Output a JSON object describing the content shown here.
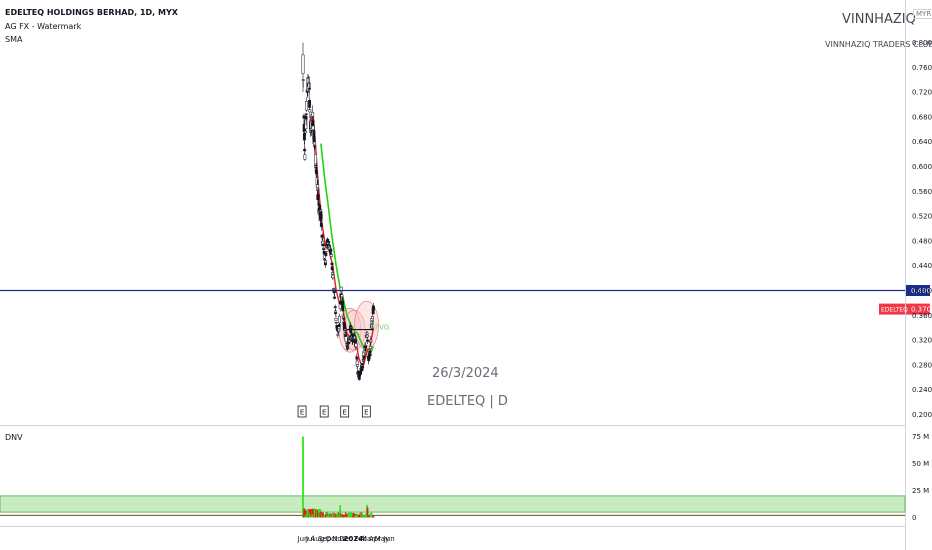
{
  "header": {
    "symbol_title": "EDELTEQ HOLDINGS BERHAD, 1D, MYX",
    "indicator_1": "AG FX - Watermark",
    "indicator_2": "SMA",
    "currency": "MYR"
  },
  "watermark": {
    "brand": "VINNHAZIQ",
    "club": "VINNHAZIQ TRADERS CLUB",
    "date": "26/3/2024",
    "ticker": "EDELTEQ | D"
  },
  "colors": {
    "up": "#ffffff",
    "down": "#131722",
    "sma_fast": "#e8191c",
    "sma_slow": "#22d40f",
    "hline": "#1a2d8f",
    "ticker_badge": "#f23645",
    "volume_up": "#2fe61c",
    "volume_down": "#e8191c"
  },
  "chart_data": {
    "type": "candlestick",
    "x_ticks": [
      "Jun",
      "Jul",
      "Aug",
      "Sep",
      "Oct",
      "Nov",
      "Dec",
      "2024",
      "Feb",
      "Mar",
      "Apr",
      "May",
      "Jun"
    ],
    "y_ticks": [
      "0.800",
      "0.760",
      "0.720",
      "0.680",
      "0.640",
      "0.600",
      "0.560",
      "0.520",
      "0.480",
      "0.440",
      "0.400",
      "0.360",
      "0.320",
      "0.280",
      "0.240",
      "0.200"
    ],
    "ylim": [
      0.19,
      0.82
    ],
    "price_path": [
      [
        "2023-06-01",
        0.76
      ],
      [
        "2023-06-05",
        0.68
      ],
      [
        "2023-06-09",
        0.62
      ],
      [
        "2023-06-14",
        0.68
      ],
      [
        "2023-06-20",
        0.73
      ],
      [
        "2023-06-26",
        0.74
      ],
      [
        "2023-07-03",
        0.66
      ],
      [
        "2023-07-12",
        0.68
      ],
      [
        "2023-07-19",
        0.64
      ],
      [
        "2023-07-26",
        0.6
      ],
      [
        "2023-08-02",
        0.56
      ],
      [
        "2023-08-09",
        0.53
      ],
      [
        "2023-08-16",
        0.52
      ],
      [
        "2023-08-23",
        0.48
      ],
      [
        "2023-08-30",
        0.46
      ],
      [
        "2023-09-04",
        0.44
      ],
      [
        "2023-09-08",
        0.47
      ],
      [
        "2023-09-15",
        0.48
      ],
      [
        "2023-09-22",
        0.47
      ],
      [
        "2023-09-29",
        0.46
      ],
      [
        "2023-10-06",
        0.42
      ],
      [
        "2023-10-13",
        0.39
      ],
      [
        "2023-10-20",
        0.35
      ],
      [
        "2023-10-27",
        0.33
      ],
      [
        "2023-11-01",
        0.34
      ],
      [
        "2023-11-07",
        0.38
      ],
      [
        "2023-11-10",
        0.4
      ],
      [
        "2023-11-14",
        0.39
      ],
      [
        "2023-11-21",
        0.35
      ],
      [
        "2023-11-28",
        0.33
      ],
      [
        "2023-12-06",
        0.31
      ],
      [
        "2023-12-14",
        0.32
      ],
      [
        "2023-12-20",
        0.34
      ],
      [
        "2023-12-28",
        0.32
      ],
      [
        "2024-01-05",
        0.33
      ],
      [
        "2024-01-12",
        0.31
      ],
      [
        "2024-01-19",
        0.27
      ],
      [
        "2024-01-26",
        0.26
      ],
      [
        "2024-02-02",
        0.27
      ],
      [
        "2024-02-09",
        0.28
      ],
      [
        "2024-02-16",
        0.3
      ],
      [
        "2024-02-22",
        0.31
      ],
      [
        "2024-02-28",
        0.33
      ],
      [
        "2024-03-05",
        0.29
      ],
      [
        "2024-03-12",
        0.3
      ],
      [
        "2024-03-18",
        0.34
      ],
      [
        "2024-03-22",
        0.36
      ],
      [
        "2024-03-26",
        0.37
      ]
    ],
    "sma_fast": [
      [
        "2023-06-28",
        0.67
      ],
      [
        "2023-07-05",
        0.68
      ],
      [
        "2023-07-15",
        0.68
      ],
      [
        "2023-07-25",
        0.63
      ],
      [
        "2023-08-05",
        0.57
      ],
      [
        "2023-08-20",
        0.51
      ],
      [
        "2023-09-05",
        0.47
      ],
      [
        "2023-09-20",
        0.465
      ],
      [
        "2023-10-05",
        0.44
      ],
      [
        "2023-10-20",
        0.4
      ],
      [
        "2023-11-05",
        0.375
      ],
      [
        "2023-11-12",
        0.38
      ],
      [
        "2023-11-20",
        0.365
      ],
      [
        "2023-12-05",
        0.33
      ],
      [
        "2023-12-20",
        0.325
      ],
      [
        "2024-01-05",
        0.33
      ],
      [
        "2024-01-15",
        0.31
      ],
      [
        "2024-01-25",
        0.29
      ],
      [
        "2024-02-10",
        0.275
      ],
      [
        "2024-02-20",
        0.29
      ],
      [
        "2024-03-01",
        0.305
      ],
      [
        "2024-03-10",
        0.305
      ],
      [
        "2024-03-26",
        0.34
      ]
    ],
    "sma_slow": [
      [
        "2023-08-16",
        0.637
      ],
      [
        "2023-09-01",
        0.58
      ],
      [
        "2023-09-15",
        0.54
      ],
      [
        "2023-10-01",
        0.49
      ],
      [
        "2023-10-20",
        0.44
      ],
      [
        "2023-11-05",
        0.405
      ],
      [
        "2023-11-20",
        0.385
      ],
      [
        "2023-12-05",
        0.36
      ],
      [
        "2023-12-20",
        0.345
      ],
      [
        "2024-01-05",
        0.335
      ],
      [
        "2024-01-20",
        0.33
      ],
      [
        "2024-02-05",
        0.315
      ],
      [
        "2024-02-20",
        0.305
      ],
      [
        "2024-03-05",
        0.3
      ],
      [
        "2024-03-15",
        0.3
      ],
      [
        "2024-03-26",
        0.31
      ]
    ],
    "horizontal_line": 0.4,
    "resistance_line": 0.337,
    "fvg_band": [
      0.335,
      0.348
    ],
    "fvg_label": "FVG",
    "last_price_label": "0.370",
    "level_label": "0.400",
    "ticker_badge": "EDELTEQ",
    "earnings_marker": "E",
    "earnings_dates": [
      "2023-05-28",
      "2023-08-30",
      "2023-11-25",
      "2024-02-25"
    ],
    "volume": {
      "label": "DNV",
      "y_ticks": [
        "75 M",
        "50 M",
        "25 M",
        "0"
      ],
      "ylim": [
        0,
        78
      ],
      "spike": [
        "2023-05-31",
        75
      ],
      "zone": [
        5,
        20
      ]
    }
  }
}
